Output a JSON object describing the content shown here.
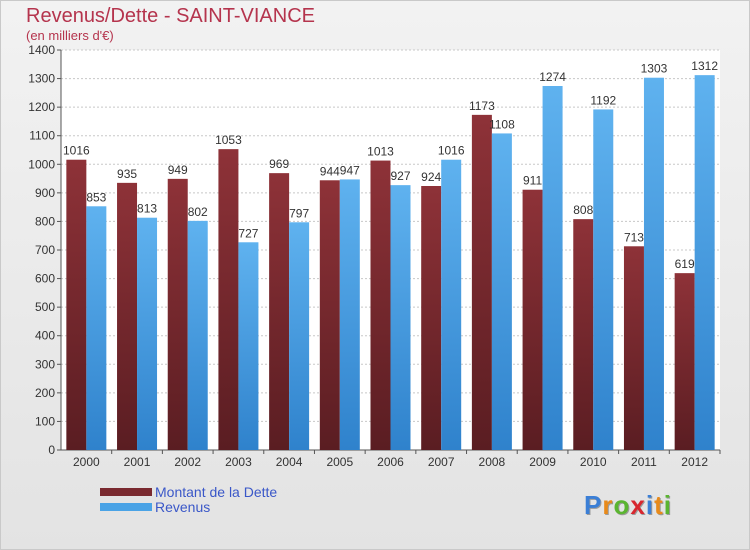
{
  "chart_data": {
    "type": "bar",
    "title": "Revenus/Dette - SAINT-VIANCE",
    "subtitle": "(en milliers d'€)",
    "categories": [
      "2000",
      "2001",
      "2002",
      "2003",
      "2004",
      "2005",
      "2006",
      "2007",
      "2008",
      "2009",
      "2010",
      "2011",
      "2012"
    ],
    "series": [
      {
        "name": "Montant de la Dette",
        "color": "#7a2a30",
        "values": [
          1016,
          935,
          949,
          1053,
          969,
          944,
          1013,
          924,
          1173,
          911,
          808,
          713,
          619
        ]
      },
      {
        "name": "Revenus",
        "color": "#4aa3e6",
        "values": [
          853,
          813,
          802,
          727,
          797,
          947,
          927,
          1016,
          1108,
          1274,
          1192,
          1303,
          1312
        ]
      }
    ],
    "ylim": [
      0,
      1400
    ],
    "yticks": [
      0,
      100,
      200,
      300,
      400,
      500,
      600,
      700,
      800,
      900,
      1000,
      1100,
      1200,
      1300,
      1400
    ],
    "grid": true,
    "legend_position": "bottom-left"
  },
  "logo": {
    "letters": [
      "P",
      "r",
      "o",
      "x",
      "i",
      "t",
      "i"
    ],
    "colors": [
      "#3b7fd6",
      "#e88a1a",
      "#5bb531",
      "#d8272f",
      "#3b7fd6",
      "#e88a1a",
      "#5bb531"
    ]
  }
}
